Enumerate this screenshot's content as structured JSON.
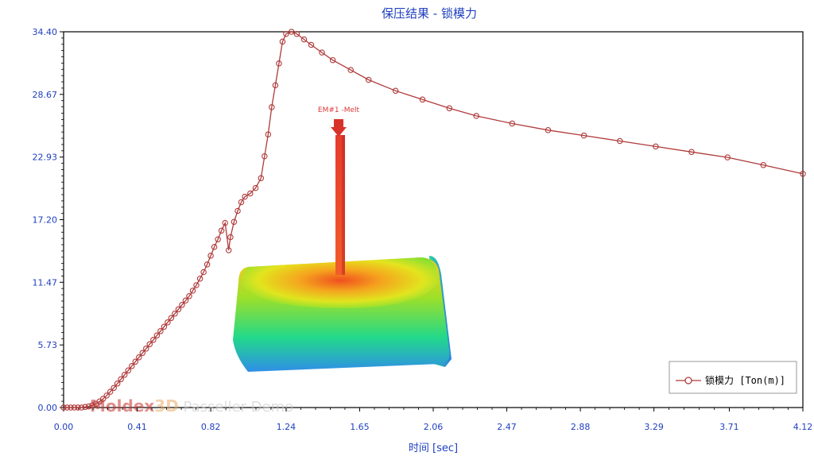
{
  "chart_data": {
    "type": "line",
    "title": "保压结果 - 锁模力",
    "xlabel": "时间 [sec]",
    "ylabel": "",
    "x_ticks": [
      "0.00",
      "0.41",
      "0.82",
      "1.24",
      "1.65",
      "2.06",
      "2.47",
      "2.88",
      "3.29",
      "3.71",
      "4.12"
    ],
    "y_ticks": [
      "34.40",
      "28.67",
      "22.93",
      "17.20",
      "11.47",
      "5.73",
      "0.00"
    ],
    "xlim": [
      0,
      4.12
    ],
    "ylim": [
      0,
      34.4
    ],
    "grid": false,
    "legend_position": "bottom-right",
    "series": [
      {
        "name": "锁模力 [Ton(m)]",
        "color": "#b03a3a",
        "marker": "open-circle",
        "points": [
          [
            0.0,
            0.0
          ],
          [
            0.02,
            0.0
          ],
          [
            0.04,
            0.0
          ],
          [
            0.06,
            0.0
          ],
          [
            0.08,
            0.0
          ],
          [
            0.1,
            0.0
          ],
          [
            0.12,
            0.05
          ],
          [
            0.14,
            0.1
          ],
          [
            0.16,
            0.2
          ],
          [
            0.18,
            0.35
          ],
          [
            0.2,
            0.55
          ],
          [
            0.22,
            0.8
          ],
          [
            0.24,
            1.1
          ],
          [
            0.26,
            1.45
          ],
          [
            0.28,
            1.8
          ],
          [
            0.3,
            2.2
          ],
          [
            0.32,
            2.6
          ],
          [
            0.34,
            3.0
          ],
          [
            0.36,
            3.4
          ],
          [
            0.38,
            3.8
          ],
          [
            0.4,
            4.2
          ],
          [
            0.42,
            4.6
          ],
          [
            0.44,
            5.0
          ],
          [
            0.46,
            5.4
          ],
          [
            0.48,
            5.8
          ],
          [
            0.5,
            6.2
          ],
          [
            0.52,
            6.6
          ],
          [
            0.54,
            7.0
          ],
          [
            0.56,
            7.4
          ],
          [
            0.58,
            7.8
          ],
          [
            0.6,
            8.2
          ],
          [
            0.62,
            8.6
          ],
          [
            0.64,
            9.0
          ],
          [
            0.66,
            9.4
          ],
          [
            0.68,
            9.8
          ],
          [
            0.7,
            10.2
          ],
          [
            0.72,
            10.7
          ],
          [
            0.74,
            11.2
          ],
          [
            0.76,
            11.8
          ],
          [
            0.78,
            12.4
          ],
          [
            0.8,
            13.1
          ],
          [
            0.82,
            13.9
          ],
          [
            0.84,
            14.7
          ],
          [
            0.86,
            15.4
          ],
          [
            0.88,
            16.2
          ],
          [
            0.9,
            16.9
          ],
          [
            0.92,
            14.4
          ],
          [
            0.93,
            15.6
          ],
          [
            0.95,
            17.0
          ],
          [
            0.97,
            18.0
          ],
          [
            0.99,
            18.8
          ],
          [
            1.01,
            19.3
          ],
          [
            1.04,
            19.6
          ],
          [
            1.07,
            20.1
          ],
          [
            1.1,
            21.0
          ],
          [
            1.12,
            23.0
          ],
          [
            1.14,
            25.0
          ],
          [
            1.16,
            27.5
          ],
          [
            1.18,
            29.5
          ],
          [
            1.2,
            31.5
          ],
          [
            1.22,
            33.5
          ],
          [
            1.24,
            34.2
          ],
          [
            1.27,
            34.4
          ],
          [
            1.3,
            34.2
          ],
          [
            1.34,
            33.7
          ],
          [
            1.38,
            33.2
          ],
          [
            1.44,
            32.5
          ],
          [
            1.5,
            31.8
          ],
          [
            1.6,
            30.9
          ],
          [
            1.7,
            30.0
          ],
          [
            1.85,
            29.0
          ],
          [
            2.0,
            28.2
          ],
          [
            2.15,
            27.4
          ],
          [
            2.3,
            26.7
          ],
          [
            2.5,
            26.0
          ],
          [
            2.7,
            25.4
          ],
          [
            2.9,
            24.9
          ],
          [
            3.1,
            24.4
          ],
          [
            3.3,
            23.9
          ],
          [
            3.5,
            23.4
          ],
          [
            3.7,
            22.9
          ],
          [
            3.9,
            22.2
          ],
          [
            4.12,
            21.4
          ]
        ]
      }
    ],
    "watermark": {
      "brand": "Moldex",
      "brand_3d": "3D",
      "rest": " Passeller Demo"
    },
    "model_label": "EM#1 -Melt"
  }
}
